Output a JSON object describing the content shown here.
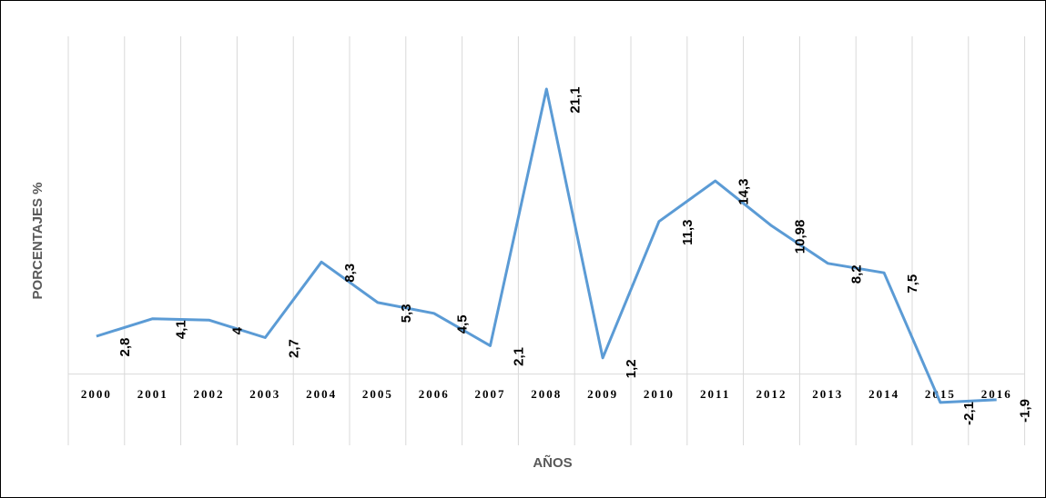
{
  "chart_data": {
    "type": "line",
    "x_label": "AÑOS",
    "y_label": "PORCENTAJES %",
    "categories": [
      "2000",
      "2001",
      "2002",
      "2003",
      "2004",
      "2005",
      "2006",
      "2007",
      "2008",
      "2009",
      "2010",
      "2011",
      "2012",
      "2013",
      "2014",
      "2015",
      "2016"
    ],
    "series": [
      {
        "color": "#5b9bd5",
        "values": [
          2.8,
          4.1,
          4,
          2.7,
          8.3,
          5.3,
          4.5,
          2.1,
          21.1,
          1.2,
          11.3,
          14.3,
          10.98,
          8.2,
          7.5,
          -2.1,
          -1.9
        ],
        "value_labels": [
          "2,8",
          "4,1",
          "4",
          "2,7",
          "8,3",
          "5,3",
          "4,5",
          "2,1",
          "21,1",
          "1,2",
          "11,3",
          "14,3",
          "10,98",
          "8,2",
          "7,5",
          "-2,1",
          "-1,9"
        ]
      }
    ],
    "ylim": [
      -5,
      25
    ]
  }
}
